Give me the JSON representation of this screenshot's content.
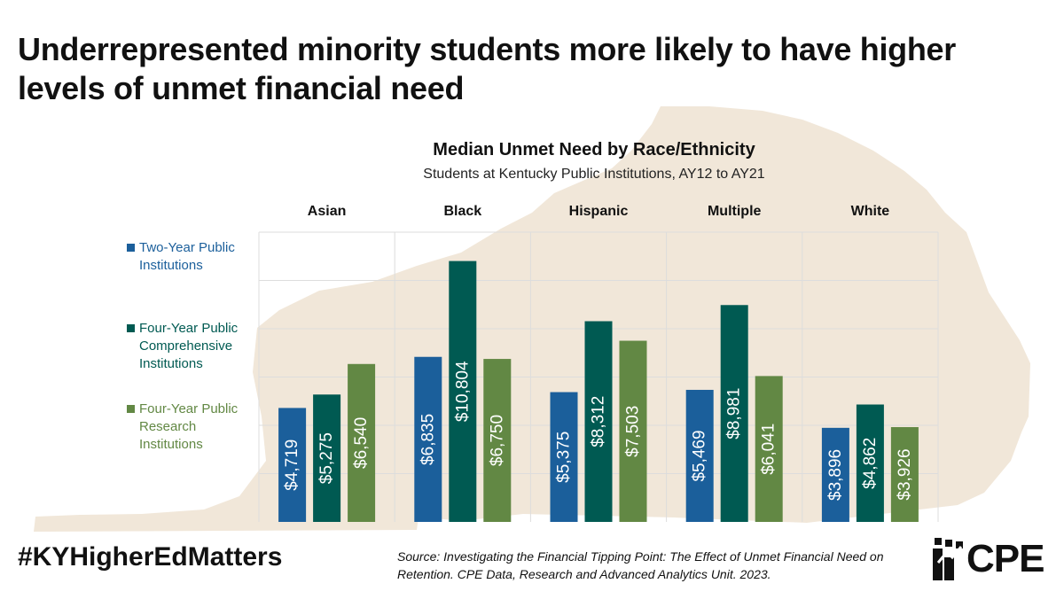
{
  "headline": "Underrepresented minority students more likely to have higher levels of unmet financial need",
  "colors": {
    "two_year": "#1b5f9b",
    "four_year_comp": "#005a52",
    "four_year_research": "#628844",
    "map": "#f1e7d9",
    "grid": "#dddddd"
  },
  "legend": [
    {
      "label": "Two-Year Public Institutions",
      "color": "#1b5f9b"
    },
    {
      "label": "Four-Year Public Comprehensive Institutions",
      "color": "#005a52"
    },
    {
      "label": "Four-Year Public Research Institutions",
      "color": "#628844"
    }
  ],
  "chart_data": {
    "type": "bar",
    "title": "Median Unmet Need by Race/Ethnicity",
    "subtitle": "Students at Kentucky Public Institutions, AY12 to AY21",
    "categories": [
      "Asian",
      "Black",
      "Hispanic",
      "Multiple",
      "White"
    ],
    "series": [
      {
        "name": "Two-Year Public Institutions",
        "values": [
          4719,
          6835,
          5375,
          5469,
          3896
        ],
        "labels": [
          "$4,719",
          "$6,835",
          "$5,375",
          "$5,469",
          "$3,896"
        ]
      },
      {
        "name": "Four-Year Public Comprehensive Institutions",
        "values": [
          5275,
          10804,
          8312,
          8981,
          4862
        ],
        "labels": [
          "$5,275",
          "$10,804",
          "$8,312",
          "$8,981",
          "$4,862"
        ]
      },
      {
        "name": "Four-Year Public Research Institutions",
        "values": [
          6540,
          6750,
          7503,
          6041,
          3926
        ],
        "labels": [
          "$6,540",
          "$6,750",
          "$7,503",
          "$6,041",
          "$3,926"
        ]
      }
    ],
    "ylim": [
      0,
      12000
    ],
    "grid": true,
    "axis_labels_shown": false,
    "legend_position": "left",
    "bar_label_orientation": "vertical"
  },
  "footer": {
    "hashtag": "#KYHigherEdMatters",
    "source": "Source: Investigating the Financial Tipping Point: The Effect of Unmet Financial Need on Retention. CPE Data, Research and Advanced Analytics Unit. 2023.",
    "logo_text": "CPE"
  }
}
